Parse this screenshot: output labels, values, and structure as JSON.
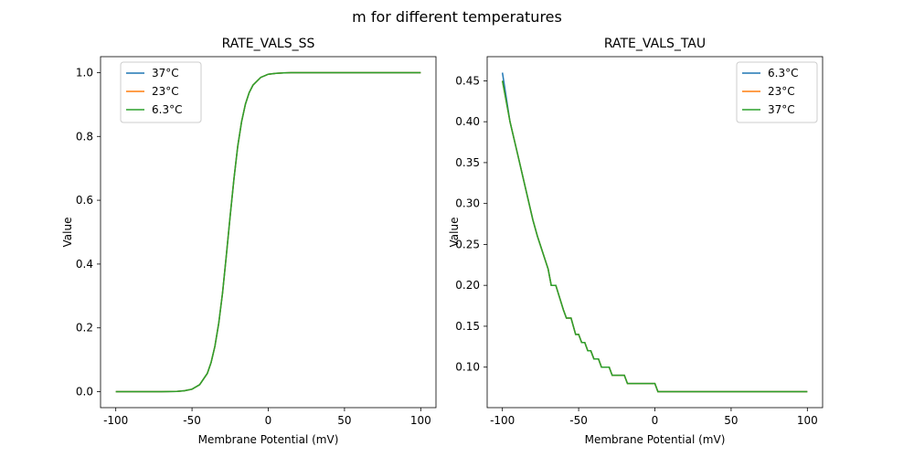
{
  "suptitle": "m for different temperatures",
  "chart_data": [
    {
      "type": "line",
      "title": "RATE_VALS_SS",
      "xlabel": "Membrane Potential (mV)",
      "ylabel": "Value",
      "xlim": [
        -110,
        110
      ],
      "ylim": [
        -0.05,
        1.05
      ],
      "xticks": [
        -100,
        -50,
        0,
        50,
        100
      ],
      "yticks": [
        0.0,
        0.2,
        0.4,
        0.6,
        0.8,
        1.0
      ],
      "ytick_labels": [
        "0.0",
        "0.2",
        "0.4",
        "0.6",
        "0.8",
        "1.0"
      ],
      "legend": "top-left",
      "x": [
        -100,
        -90,
        -80,
        -70,
        -60,
        -55,
        -50,
        -45,
        -40,
        -37.5,
        -35,
        -32.5,
        -30,
        -27.5,
        -25,
        -22.5,
        -20,
        -17.5,
        -15,
        -12.5,
        -10,
        -5,
        0,
        5,
        10,
        15,
        20,
        30,
        50,
        100
      ],
      "series": [
        {
          "name": "37°C",
          "color": "#1f77b4",
          "values": [
            0,
            0,
            0,
            0,
            0.001,
            0.003,
            0.008,
            0.022,
            0.057,
            0.091,
            0.142,
            0.214,
            0.31,
            0.426,
            0.55,
            0.668,
            0.769,
            0.846,
            0.901,
            0.937,
            0.961,
            0.985,
            0.995,
            0.998,
            0.999,
            1,
            1,
            1,
            1,
            1
          ]
        },
        {
          "name": "23°C",
          "color": "#ff7f0e",
          "values": [
            0,
            0,
            0,
            0,
            0.001,
            0.003,
            0.008,
            0.022,
            0.057,
            0.091,
            0.142,
            0.214,
            0.31,
            0.426,
            0.55,
            0.668,
            0.769,
            0.846,
            0.901,
            0.937,
            0.961,
            0.985,
            0.995,
            0.998,
            0.999,
            1,
            1,
            1,
            1,
            1
          ]
        },
        {
          "name": "6.3°C",
          "color": "#2ca02c",
          "values": [
            0,
            0,
            0,
            0,
            0.001,
            0.003,
            0.008,
            0.022,
            0.057,
            0.091,
            0.142,
            0.214,
            0.31,
            0.426,
            0.55,
            0.668,
            0.769,
            0.846,
            0.901,
            0.937,
            0.961,
            0.985,
            0.995,
            0.998,
            0.999,
            1,
            1,
            1,
            1,
            1
          ]
        }
      ]
    },
    {
      "type": "line",
      "title": "RATE_VALS_TAU",
      "xlabel": "Membrane Potential (mV)",
      "ylabel": "Value",
      "xlim": [
        -110,
        110
      ],
      "ylim": [
        0.0505,
        0.4795
      ],
      "xticks": [
        -100,
        -50,
        0,
        50,
        100
      ],
      "yticks": [
        0.1,
        0.15,
        0.2,
        0.25,
        0.3,
        0.35,
        0.4,
        0.45
      ],
      "ytick_labels": [
        "0.10",
        "0.15",
        "0.20",
        "0.25",
        "0.30",
        "0.35",
        "0.40",
        "0.45"
      ],
      "legend": "top-right",
      "x": [
        -100,
        -95,
        -90,
        -85,
        -80,
        -77,
        -70,
        -68,
        -65,
        -60,
        -58,
        -55,
        -52,
        -50,
        -48,
        -46,
        -44,
        -42,
        -40,
        -37,
        -35,
        -30,
        -28,
        -20,
        -18,
        0,
        2,
        100
      ],
      "series": [
        {
          "name": "6.3°C",
          "color": "#1f77b4",
          "values": [
            0.46,
            0.4,
            0.36,
            0.32,
            0.28,
            0.26,
            0.22,
            0.2,
            0.2,
            0.17,
            0.16,
            0.16,
            0.14,
            0.14,
            0.13,
            0.13,
            0.12,
            0.12,
            0.11,
            0.11,
            0.1,
            0.1,
            0.09,
            0.09,
            0.08,
            0.08,
            0.07,
            0.07
          ]
        },
        {
          "name": "23°C",
          "color": "#ff7f0e",
          "values": [
            0.45,
            0.4,
            0.36,
            0.32,
            0.28,
            0.26,
            0.22,
            0.2,
            0.2,
            0.17,
            0.16,
            0.16,
            0.14,
            0.14,
            0.13,
            0.13,
            0.12,
            0.12,
            0.11,
            0.11,
            0.1,
            0.1,
            0.09,
            0.09,
            0.08,
            0.08,
            0.07,
            0.07
          ]
        },
        {
          "name": "37°C",
          "color": "#2ca02c",
          "values": [
            0.45,
            0.4,
            0.36,
            0.32,
            0.28,
            0.26,
            0.22,
            0.2,
            0.2,
            0.17,
            0.16,
            0.16,
            0.14,
            0.14,
            0.13,
            0.13,
            0.12,
            0.12,
            0.11,
            0.11,
            0.1,
            0.1,
            0.09,
            0.09,
            0.08,
            0.08,
            0.07,
            0.07
          ]
        }
      ]
    }
  ]
}
